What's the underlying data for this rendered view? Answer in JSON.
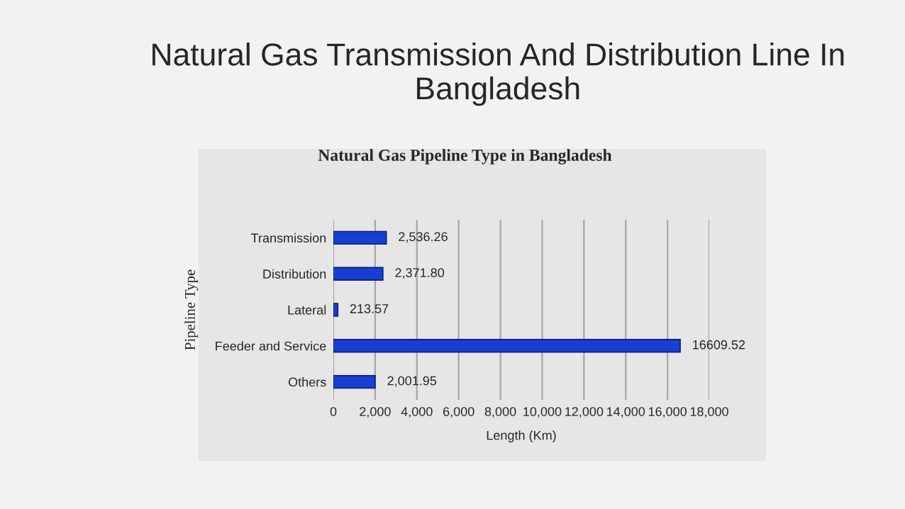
{
  "chart_data": {
    "type": "bar",
    "orientation": "horizontal",
    "title": "Natural Gas Transmission And Distribution Line In Bangladesh",
    "subtitle": "Natural Gas Pipeline Type in Bangladesh",
    "xlabel": "Length (Km)",
    "ylabel": "Pipeline Type",
    "categories": [
      "Transmission",
      "Distribution",
      "Lateral",
      "Feeder and Service",
      "Others"
    ],
    "values": [
      2536.26,
      2371.8,
      213.57,
      16609.52,
      2001.95
    ],
    "value_labels": [
      "2,536.26",
      "2,371.80",
      "213.57",
      "16609.52",
      "2,001.95"
    ],
    "color": "#1a3fd0",
    "xlim": [
      0,
      18000
    ],
    "xticks": [
      0,
      {
        "value": 2000,
        "label": "2,000"
      },
      {
        "value": 4000,
        "label": "4,000"
      },
      {
        "value": 6000,
        "label": "6,000"
      },
      {
        "value": 8000,
        "label": "8,000"
      },
      {
        "value": 10000,
        "label": "10,000"
      },
      {
        "value": 12000,
        "label": "12,000"
      },
      {
        "value": 14000,
        "label": "14,000"
      },
      {
        "value": 16000,
        "label": "16,000"
      },
      {
        "value": 18000,
        "label": "18,000"
      }
    ],
    "grid": "x",
    "legend": false
  }
}
